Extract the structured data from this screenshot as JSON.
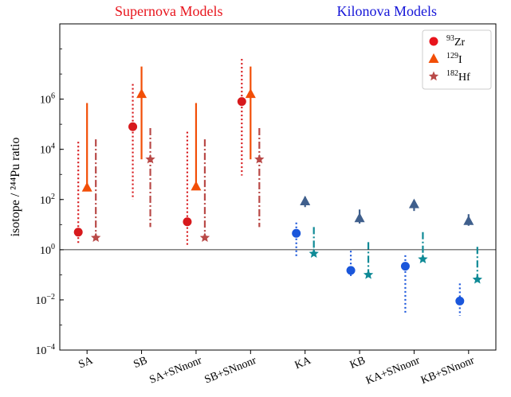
{
  "chart_data": {
    "type": "scatter",
    "ylabel": "isotope / ²⁴⁴Pu ratio",
    "yscale": "log",
    "ylim": [
      0.0001,
      1000000000
    ],
    "yticks": [
      {
        "value": 0.0001,
        "base": "10",
        "exp": "−4"
      },
      {
        "value": 0.01,
        "base": "10",
        "exp": "−2"
      },
      {
        "value": 1,
        "base": "10",
        "exp": "0"
      },
      {
        "value": 100,
        "base": "10",
        "exp": "2"
      },
      {
        "value": 10000,
        "base": "10",
        "exp": "4"
      },
      {
        "value": 1000000,
        "base": "10",
        "exp": "6"
      }
    ],
    "reference_line": 1,
    "group_titles": [
      {
        "text": "Supernova Models",
        "color": "#e8141c",
        "categories": [
          0,
          3
        ]
      },
      {
        "text": "Kilonova Models",
        "color": "#1515d8",
        "categories": [
          4,
          7
        ]
      }
    ],
    "categories": [
      "SA",
      "SB",
      "SA+SNnonr",
      "SB+SNnonr",
      "KA",
      "KB",
      "KA+SNnonr",
      "KB+SNnonr"
    ],
    "series": [
      {
        "name": "⁹³Zr",
        "label_mass": "93",
        "label_element": "Zr",
        "marker": "circle",
        "values": [
          5,
          80000,
          13,
          800000,
          4.5,
          0.15,
          0.22,
          0.009
        ],
        "lower": [
          1.5,
          100,
          1.5,
          900,
          0.55,
          0.09,
          0.003,
          0.0023
        ],
        "upper": [
          20000,
          4000000,
          50000,
          40000000,
          12,
          0.9,
          0.6,
          0.045
        ],
        "error_style": [
          "dotted",
          "dotted",
          "dotted",
          "dotted",
          "dotted",
          "dotted",
          "dotted",
          "dotted"
        ],
        "colors": [
          "#d7191c",
          "#d7191c",
          "#d7191c",
          "#d7191c",
          "#1a56db",
          "#1a56db",
          "#1a56db",
          "#1a56db"
        ],
        "legend_color": "#e8141c"
      },
      {
        "name": "¹²⁹I",
        "label_mass": "129",
        "label_element": "I",
        "marker": "triangle",
        "values": [
          300,
          1600000,
          330,
          1600000,
          85,
          18,
          65,
          14
        ],
        "lower": [
          300,
          4000,
          300,
          4000,
          50,
          11,
          35,
          9
        ],
        "upper": [
          700000,
          20000000,
          700000,
          20000000,
          130,
          40,
          95,
          26
        ],
        "error_style": [
          "solid",
          "solid",
          "solid",
          "solid",
          "solid",
          "solid",
          "solid",
          "solid"
        ],
        "colors": [
          "#f24e07",
          "#f24e07",
          "#f24e07",
          "#f24e07",
          "#3f5f8c",
          "#3f5f8c",
          "#3f5f8c",
          "#3f5f8c"
        ],
        "legend_color": "#f24e07"
      },
      {
        "name": "¹⁸²Hf",
        "label_mass": "182",
        "label_element": "Hf",
        "marker": "star",
        "values": [
          3,
          4000,
          3,
          4000,
          0.7,
          0.1,
          0.42,
          0.065
        ],
        "lower": [
          3,
          8,
          3,
          8,
          0.6,
          0.08,
          0.4,
          0.06
        ],
        "upper": [
          25000,
          70000,
          25000,
          70000,
          8,
          2,
          5,
          1.3
        ],
        "error_style": [
          "dashdot",
          "dashdot",
          "dashdot",
          "dashdot",
          "dashdot",
          "dashdot",
          "dashdot",
          "dashdot"
        ],
        "colors": [
          "#b94a48",
          "#b94a48",
          "#b94a48",
          "#b94a48",
          "#0f8a96",
          "#0f8a96",
          "#0f8a96",
          "#0f8a96"
        ],
        "legend_color": "#b94a48"
      }
    ],
    "legend": {
      "position": "top-right"
    },
    "grid": false
  }
}
